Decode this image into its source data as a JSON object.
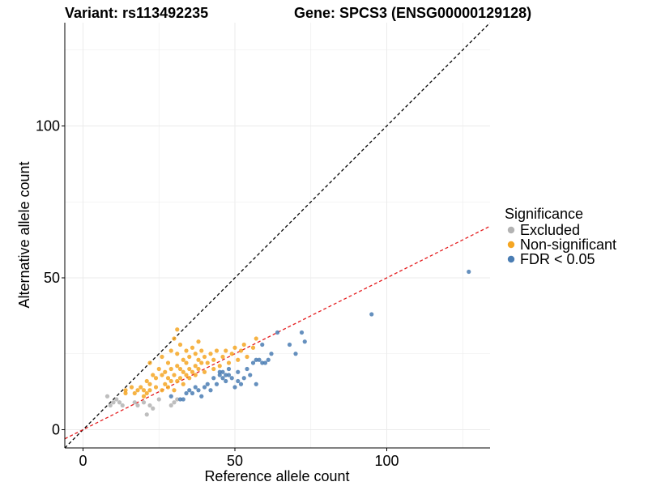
{
  "titles": {
    "variant": "Variant: rs113492235",
    "gene": "Gene: SPCS3 (ENSG00000129128)"
  },
  "chart_data": {
    "type": "scatter",
    "xlabel": "Reference allele count",
    "ylabel": "Alternative allele count",
    "xlim": [
      -6,
      134
    ],
    "ylim": [
      -6,
      134
    ],
    "x_ticks": [
      0,
      50,
      100
    ],
    "y_ticks": [
      0,
      50,
      100
    ],
    "grid": true,
    "legend": {
      "title": "Significance",
      "placement": "right",
      "entries": [
        {
          "label": "Excluded",
          "color": "#b3b3b3"
        },
        {
          "label": "Non-significant",
          "color": "#f5a623"
        },
        {
          "label": "FDR < 0.05",
          "color": "#4a7db3"
        }
      ]
    },
    "reference_lines": [
      {
        "type": "diagonal",
        "slope": 1,
        "intercept": 0,
        "color": "#000000",
        "style": "dashed"
      },
      {
        "type": "fit",
        "slope": 0.5,
        "intercept": 0,
        "color": "#e41a1c",
        "style": "dashed"
      }
    ],
    "series": [
      {
        "name": "Excluded",
        "color": "#b3b3b3",
        "points": [
          [
            8,
            11
          ],
          [
            9,
            8
          ],
          [
            10,
            9
          ],
          [
            11,
            10
          ],
          [
            12,
            9
          ],
          [
            13,
            8
          ],
          [
            17,
            9
          ],
          [
            18,
            8
          ],
          [
            20,
            9
          ],
          [
            21,
            5
          ],
          [
            22,
            8
          ],
          [
            23,
            7
          ],
          [
            25,
            10
          ],
          [
            29,
            8
          ],
          [
            30,
            9
          ],
          [
            31,
            10
          ]
        ]
      },
      {
        "name": "Non-significant",
        "color": "#f5a623",
        "points": [
          [
            14,
            12
          ],
          [
            14,
            13
          ],
          [
            16,
            14
          ],
          [
            17,
            12
          ],
          [
            18,
            13
          ],
          [
            19,
            14
          ],
          [
            20,
            11
          ],
          [
            20,
            13
          ],
          [
            21,
            12
          ],
          [
            21,
            16
          ],
          [
            22,
            13
          ],
          [
            22,
            15
          ],
          [
            22,
            22
          ],
          [
            23,
            18
          ],
          [
            24,
            14
          ],
          [
            24,
            17
          ],
          [
            25,
            20
          ],
          [
            26,
            13
          ],
          [
            26,
            18
          ],
          [
            26,
            24
          ],
          [
            27,
            15
          ],
          [
            27,
            19
          ],
          [
            28,
            14
          ],
          [
            28,
            17
          ],
          [
            28,
            22
          ],
          [
            29,
            16
          ],
          [
            29,
            20
          ],
          [
            29,
            26
          ],
          [
            30,
            13
          ],
          [
            30,
            18
          ],
          [
            30,
            30
          ],
          [
            31,
            16
          ],
          [
            31,
            21
          ],
          [
            31,
            25
          ],
          [
            31,
            33
          ],
          [
            32,
            17
          ],
          [
            32,
            20
          ],
          [
            32,
            28
          ],
          [
            33,
            15
          ],
          [
            33,
            19
          ],
          [
            33,
            23
          ],
          [
            34,
            18
          ],
          [
            34,
            22
          ],
          [
            34,
            26
          ],
          [
            35,
            17
          ],
          [
            35,
            20
          ],
          [
            35,
            24
          ],
          [
            36,
            19
          ],
          [
            36,
            27
          ],
          [
            37,
            18
          ],
          [
            37,
            21
          ],
          [
            37,
            25
          ],
          [
            38,
            20
          ],
          [
            38,
            23
          ],
          [
            38,
            29
          ],
          [
            39,
            22
          ],
          [
            39,
            26
          ],
          [
            40,
            19
          ],
          [
            40,
            24
          ],
          [
            41,
            22
          ],
          [
            42,
            25
          ],
          [
            43,
            20
          ],
          [
            43,
            23
          ],
          [
            44,
            26
          ],
          [
            45,
            21
          ],
          [
            46,
            24
          ],
          [
            47,
            26
          ],
          [
            48,
            22
          ],
          [
            49,
            25
          ],
          [
            50,
            27
          ],
          [
            51,
            23
          ],
          [
            52,
            26
          ],
          [
            53,
            28
          ],
          [
            54,
            24
          ],
          [
            56,
            27
          ],
          [
            57,
            30
          ]
        ]
      },
      {
        "name": "FDR < 0.05",
        "color": "#4a7db3",
        "points": [
          [
            29,
            11
          ],
          [
            32,
            10
          ],
          [
            33,
            10
          ],
          [
            34,
            12
          ],
          [
            35,
            13
          ],
          [
            36,
            12
          ],
          [
            37,
            14
          ],
          [
            38,
            13
          ],
          [
            39,
            11
          ],
          [
            40,
            14
          ],
          [
            41,
            15
          ],
          [
            42,
            13
          ],
          [
            43,
            17
          ],
          [
            44,
            15
          ],
          [
            45,
            18
          ],
          [
            45,
            19
          ],
          [
            46,
            17
          ],
          [
            46,
            19
          ],
          [
            47,
            16
          ],
          [
            47,
            18
          ],
          [
            48,
            18
          ],
          [
            48,
            20
          ],
          [
            49,
            17
          ],
          [
            50,
            14
          ],
          [
            51,
            16
          ],
          [
            51,
            19
          ],
          [
            52,
            15
          ],
          [
            53,
            17
          ],
          [
            54,
            20
          ],
          [
            55,
            18
          ],
          [
            56,
            22
          ],
          [
            57,
            23
          ],
          [
            57,
            15
          ],
          [
            58,
            23
          ],
          [
            59,
            22
          ],
          [
            59,
            28
          ],
          [
            60,
            22
          ],
          [
            61,
            23
          ],
          [
            62,
            25
          ],
          [
            64,
            32
          ],
          [
            68,
            28
          ],
          [
            70,
            25
          ],
          [
            72,
            32
          ],
          [
            73,
            29
          ],
          [
            95,
            38
          ],
          [
            127,
            52
          ]
        ]
      }
    ]
  }
}
